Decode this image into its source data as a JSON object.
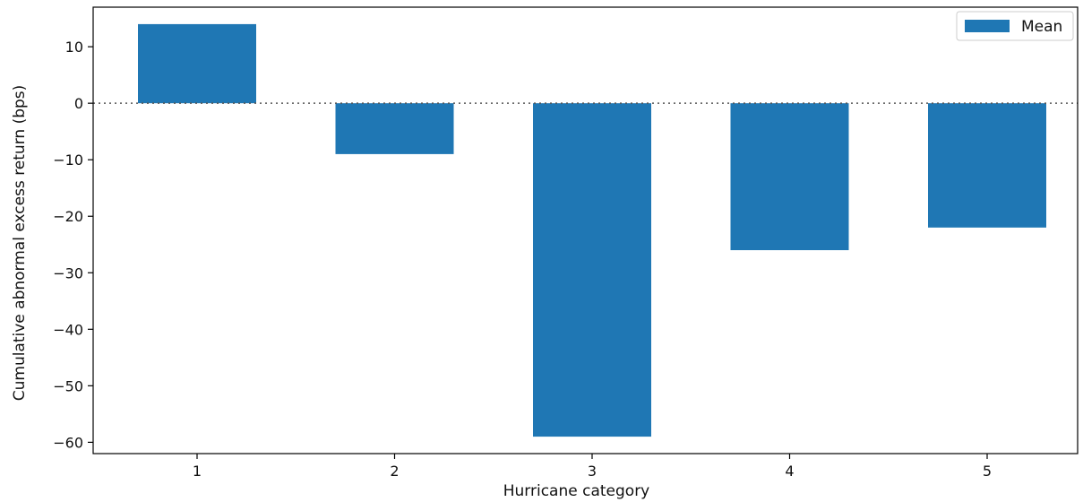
{
  "chart_data": {
    "type": "bar",
    "title": "",
    "xlabel": "Hurricane category",
    "ylabel": "Cumulative abnormal excess return (bps)",
    "categories": [
      "1",
      "2",
      "3",
      "4",
      "5"
    ],
    "series": [
      {
        "name": "Mean",
        "values": [
          14,
          -9,
          -59,
          -26,
          -22
        ]
      }
    ],
    "ylim": [
      -62,
      17
    ],
    "yticks": [
      10,
      0,
      -10,
      -20,
      -30,
      -40,
      -50,
      -60
    ],
    "ytick_labels": [
      "10",
      "0",
      "−10",
      "−20",
      "−30",
      "−40",
      "−50",
      "−60"
    ],
    "reference_line": {
      "y": 0,
      "style": "dotted"
    },
    "grid": false,
    "legend_position": "top-right",
    "colors": {
      "bar": "#1f77b4",
      "axis": "#000000",
      "zero_line": "#555555"
    }
  }
}
